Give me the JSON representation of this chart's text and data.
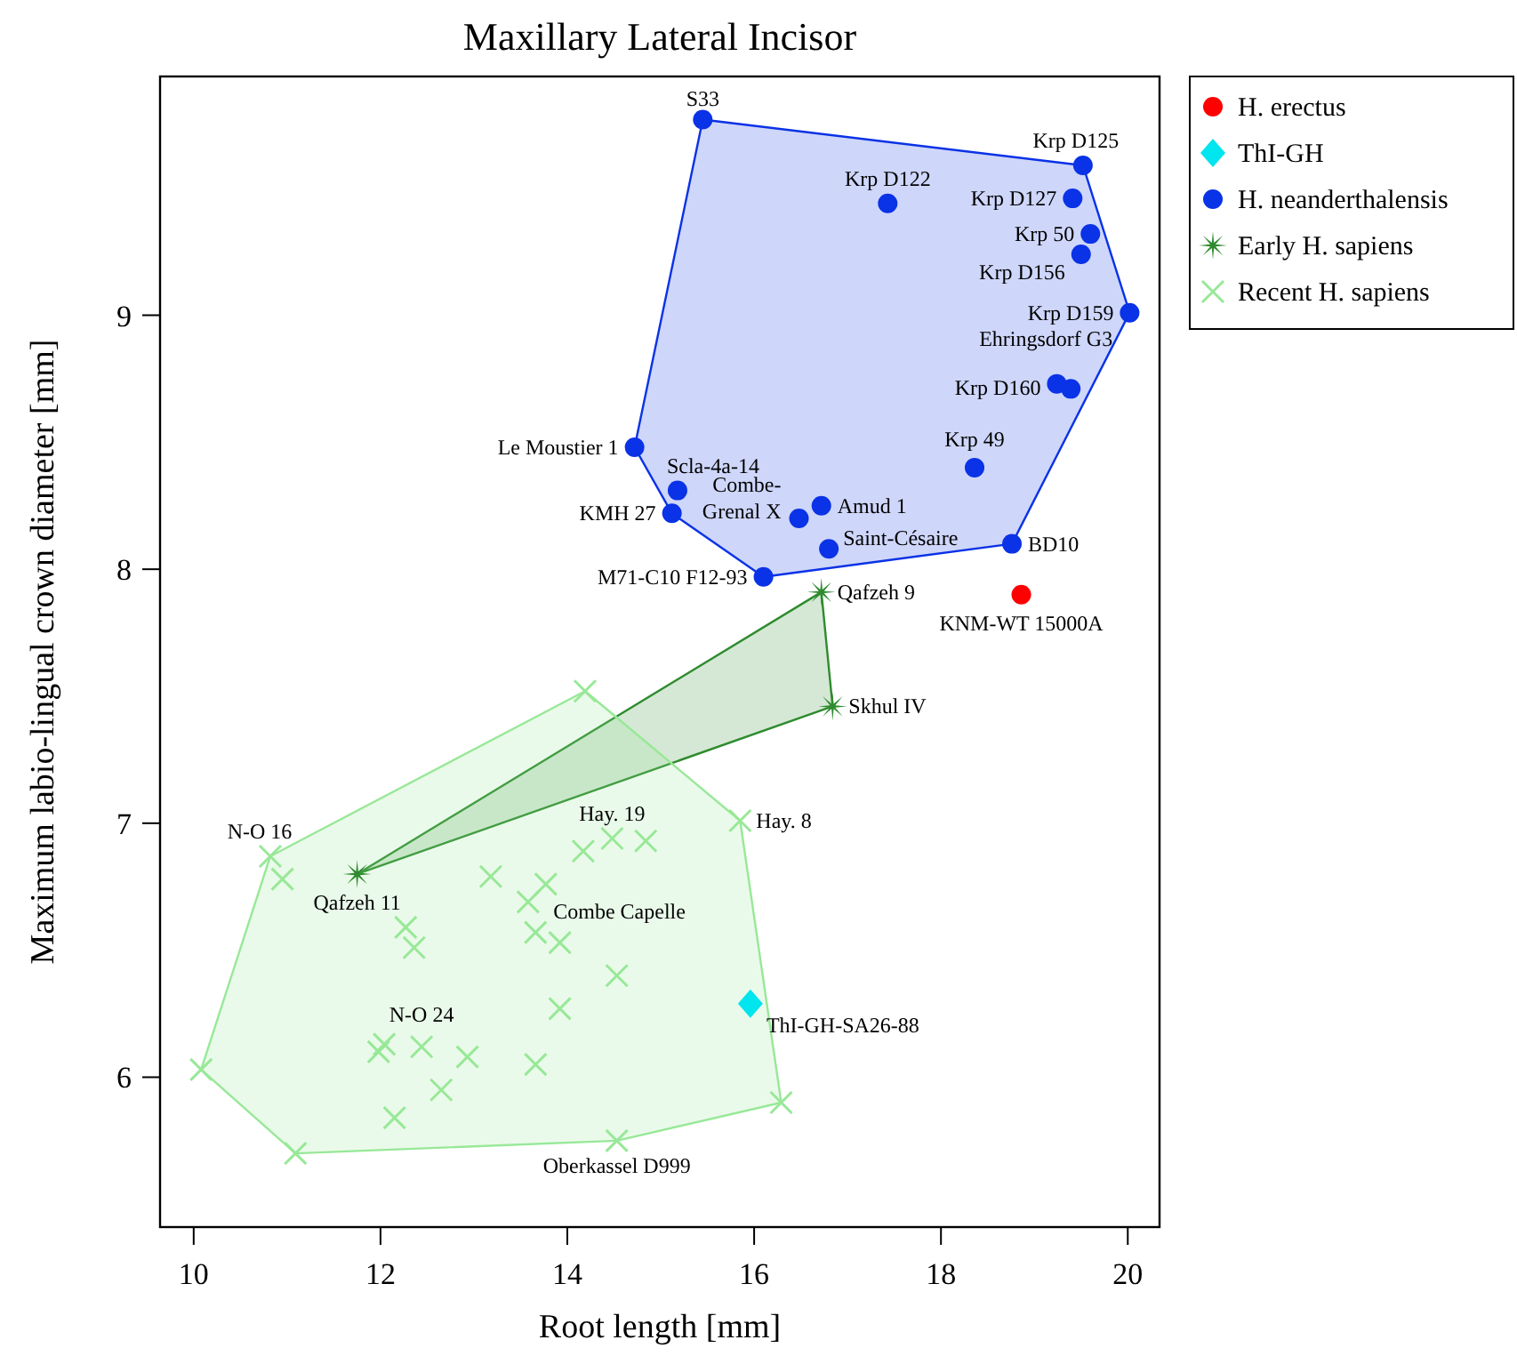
{
  "chart_data": {
    "type": "scatter",
    "title": "Maxillary Lateral Incisor",
    "xlabel": "Root length [mm]",
    "ylabel": "Maximum labio-lingual crown diameter [mm]",
    "xlim": [
      9.64,
      20.34
    ],
    "ylim": [
      5.41,
      9.94
    ],
    "xticks": [
      10,
      12,
      14,
      16,
      18,
      20
    ],
    "yticks": [
      6,
      7,
      8,
      9
    ],
    "grid": false,
    "legend": "right",
    "series": [
      {
        "name": "H. erectus",
        "color": "#ff0000",
        "marker": "circle",
        "x": [
          18.86
        ],
        "values": [
          7.9
        ]
      },
      {
        "name": "ThI-GH",
        "color": "#00e5ee",
        "marker": "diamond",
        "x": [
          15.96
        ],
        "values": [
          6.29
        ]
      },
      {
        "name": "H. neanderthalensis",
        "color": "#0a32e6",
        "marker": "circle",
        "x": [
          15.45,
          19.52,
          17.43,
          19.41,
          19.6,
          19.5,
          20.02,
          19.39,
          19.24,
          14.72,
          15.18,
          15.12,
          16.48,
          16.72,
          16.8,
          18.36,
          18.76,
          16.1
        ],
        "values": [
          9.77,
          9.59,
          9.44,
          9.46,
          9.32,
          9.24,
          9.01,
          8.71,
          8.73,
          8.48,
          8.31,
          8.22,
          8.2,
          8.25,
          8.08,
          8.4,
          8.1,
          7.97
        ]
      },
      {
        "name": "Early H. sapiens",
        "color": "#2e8b2e",
        "marker": "star",
        "x": [
          16.72,
          16.84,
          11.75
        ],
        "values": [
          7.91,
          7.46,
          6.8
        ]
      },
      {
        "name": "Recent H. sapiens",
        "color": "#98e898",
        "marker": "cross",
        "x": [
          14.19,
          10.82,
          10.95,
          15.85,
          14.48,
          14.84,
          14.17,
          13.18,
          13.77,
          13.58,
          12.27,
          12.36,
          13.66,
          13.92,
          14.53,
          13.92,
          12.04,
          11.98,
          12.44,
          12.93,
          13.66,
          12.65,
          12.15,
          10.08,
          11.09,
          14.53,
          16.29
        ],
        "values": [
          7.52,
          6.87,
          6.78,
          7.01,
          6.94,
          6.93,
          6.89,
          6.79,
          6.76,
          6.69,
          6.59,
          6.51,
          6.57,
          6.53,
          6.4,
          6.27,
          6.13,
          6.1,
          6.12,
          6.08,
          6.05,
          5.95,
          5.84,
          6.03,
          5.7,
          5.75,
          5.9
        ]
      }
    ],
    "annotations": [
      {
        "text": "S33",
        "x": 15.45,
        "y": 9.77
      },
      {
        "text": "Krp D125",
        "x": 19.52,
        "y": 9.59
      },
      {
        "text": "Krp D122",
        "x": 17.43,
        "y": 9.44
      },
      {
        "text": "Krp D127",
        "x": 19.41,
        "y": 9.46
      },
      {
        "text": "Krp 50",
        "x": 19.6,
        "y": 9.32
      },
      {
        "text": "Krp D156",
        "x": 19.5,
        "y": 9.24
      },
      {
        "text": "Krp D159",
        "x": 20.02,
        "y": 9.01
      },
      {
        "text": "Ehringsdorf G3",
        "x": 19.39,
        "y": 8.71
      },
      {
        "text": "Krp D160",
        "x": 19.24,
        "y": 8.73
      },
      {
        "text": "Le Moustier 1",
        "x": 14.72,
        "y": 8.48
      },
      {
        "text": "Scla-4a-14",
        "x": 15.18,
        "y": 8.31
      },
      {
        "text": "KMH 27",
        "x": 15.12,
        "y": 8.22
      },
      {
        "text": "Combe-Grenal X",
        "x": 16.48,
        "y": 8.2
      },
      {
        "text": "Amud 1",
        "x": 16.72,
        "y": 8.25
      },
      {
        "text": "Saint-Césaire",
        "x": 16.8,
        "y": 8.08
      },
      {
        "text": "Krp 49",
        "x": 18.36,
        "y": 8.4
      },
      {
        "text": "BD10",
        "x": 18.76,
        "y": 8.1
      },
      {
        "text": "M71-C10 F12-93",
        "x": 16.1,
        "y": 7.97
      },
      {
        "text": "KNM-WT 15000A",
        "x": 18.86,
        "y": 7.9
      },
      {
        "text": "Qafzeh 9",
        "x": 16.72,
        "y": 7.91
      },
      {
        "text": "Skhul IV",
        "x": 16.84,
        "y": 7.46
      },
      {
        "text": "Qafzeh 11",
        "x": 11.75,
        "y": 6.8
      },
      {
        "text": "ThI-GH-SA26-88",
        "x": 15.96,
        "y": 6.29
      },
      {
        "text": "N-O 16",
        "x": 10.82,
        "y": 6.87
      },
      {
        "text": "Hay. 8",
        "x": 15.85,
        "y": 7.01
      },
      {
        "text": "Hay. 19",
        "x": 14.48,
        "y": 6.94
      },
      {
        "text": "Combe Capelle",
        "x": 13.66,
        "y": 6.57
      },
      {
        "text": "N-O 24",
        "x": 12.44,
        "y": 6.12
      },
      {
        "text": "Oberkassel D999",
        "x": 14.53,
        "y": 5.75
      }
    ]
  }
}
